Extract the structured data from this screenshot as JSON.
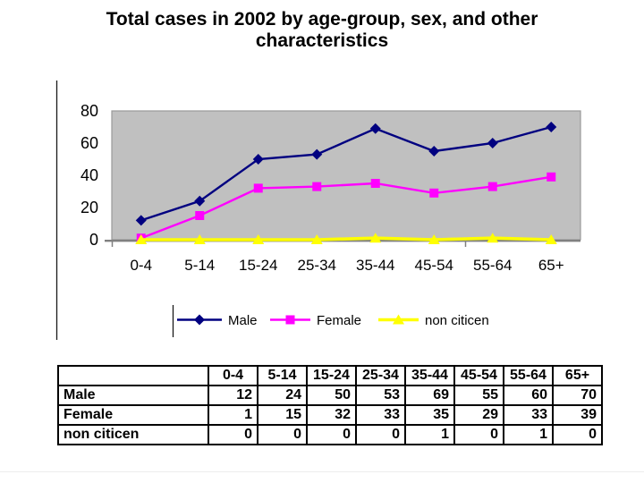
{
  "slide": {
    "title": "Total cases in 2002 by age-group, sex, and other characteristics"
  },
  "chart_data": {
    "type": "line",
    "title": "Total cases in 2002 by age-group, sex, and other characteristics",
    "categories": [
      "0-4",
      "5-14",
      "15-24",
      "25-34",
      "35-44",
      "45-54",
      "55-64",
      "65+"
    ],
    "series": [
      {
        "name": "Male",
        "color": "#000080",
        "marker": "diamond",
        "values": [
          12,
          24,
          50,
          53,
          69,
          55,
          60,
          70
        ]
      },
      {
        "name": "Female",
        "color": "#FF00FF",
        "marker": "square",
        "values": [
          1,
          15,
          32,
          33,
          35,
          29,
          33,
          39
        ]
      },
      {
        "name": "non citicen",
        "color": "#FFFF00",
        "marker": "triangle",
        "values": [
          0,
          0,
          0,
          0,
          1,
          0,
          1,
          0
        ]
      }
    ],
    "y_ticks": [
      0,
      20,
      40,
      60,
      80
    ],
    "ylim": [
      0,
      80
    ],
    "xlabel": "",
    "ylabel": "",
    "grid": false,
    "plot_bg": "#c0c0c0",
    "axis_color": "#808080",
    "legend_position": "bottom"
  }
}
